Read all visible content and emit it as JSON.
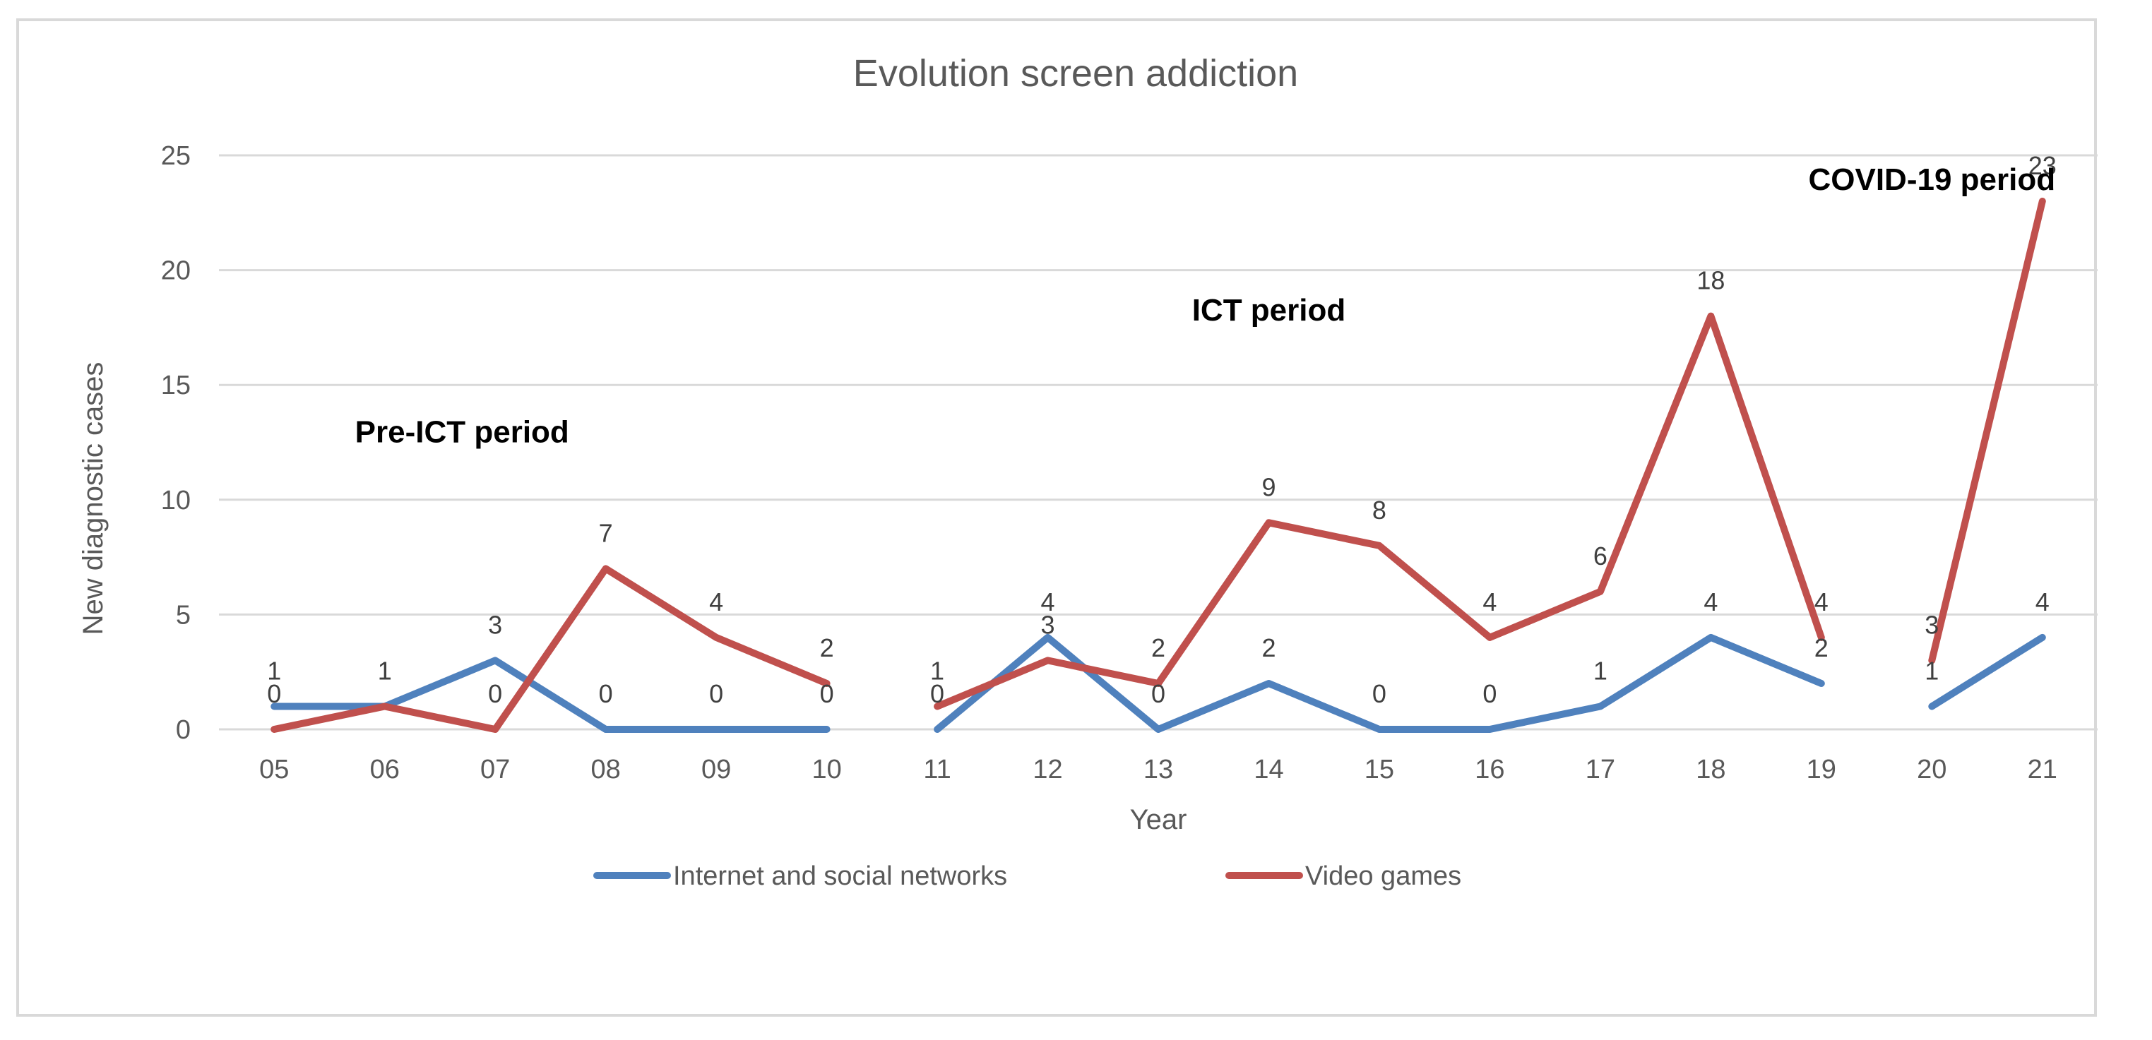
{
  "chart_data": {
    "type": "line",
    "title": "Evolution screen addiction",
    "xlabel": "Year",
    "ylabel": "New diagnostic cases",
    "categories": [
      "05",
      "06",
      "07",
      "08",
      "09",
      "10",
      "11",
      "12",
      "13",
      "14",
      "15",
      "16",
      "17",
      "18",
      "19",
      "20",
      "21"
    ],
    "ylim": [
      0,
      25
    ],
    "yticks": [
      "0",
      "5",
      "10",
      "15",
      "20",
      "25"
    ],
    "grid": true,
    "legend_position": "bottom",
    "series": [
      {
        "name": "Internet and social networks",
        "color": "#4F81BD",
        "values": [
          1,
          1,
          3,
          0,
          0,
          0,
          0,
          4,
          0,
          2,
          0,
          0,
          1,
          4,
          2,
          1,
          4
        ],
        "segments": [
          [
            0,
            5
          ],
          [
            6,
            14
          ],
          [
            15,
            16
          ]
        ]
      },
      {
        "name": "Video games",
        "color": "#C0504D",
        "values": [
          0,
          1,
          0,
          7,
          4,
          2,
          1,
          3,
          2,
          9,
          8,
          4,
          6,
          18,
          4,
          3,
          23
        ],
        "segments": [
          [
            0,
            5
          ],
          [
            6,
            14
          ],
          [
            15,
            16
          ]
        ]
      }
    ],
    "annotations": [
      {
        "text": "Pre-ICT period",
        "x_index": 1.7,
        "y": 12.5
      },
      {
        "text": "ICT period",
        "x_index": 9.0,
        "y": 17.8
      },
      {
        "text": "COVID-19 period",
        "x_index": 15.0,
        "y": 23.5
      }
    ]
  }
}
